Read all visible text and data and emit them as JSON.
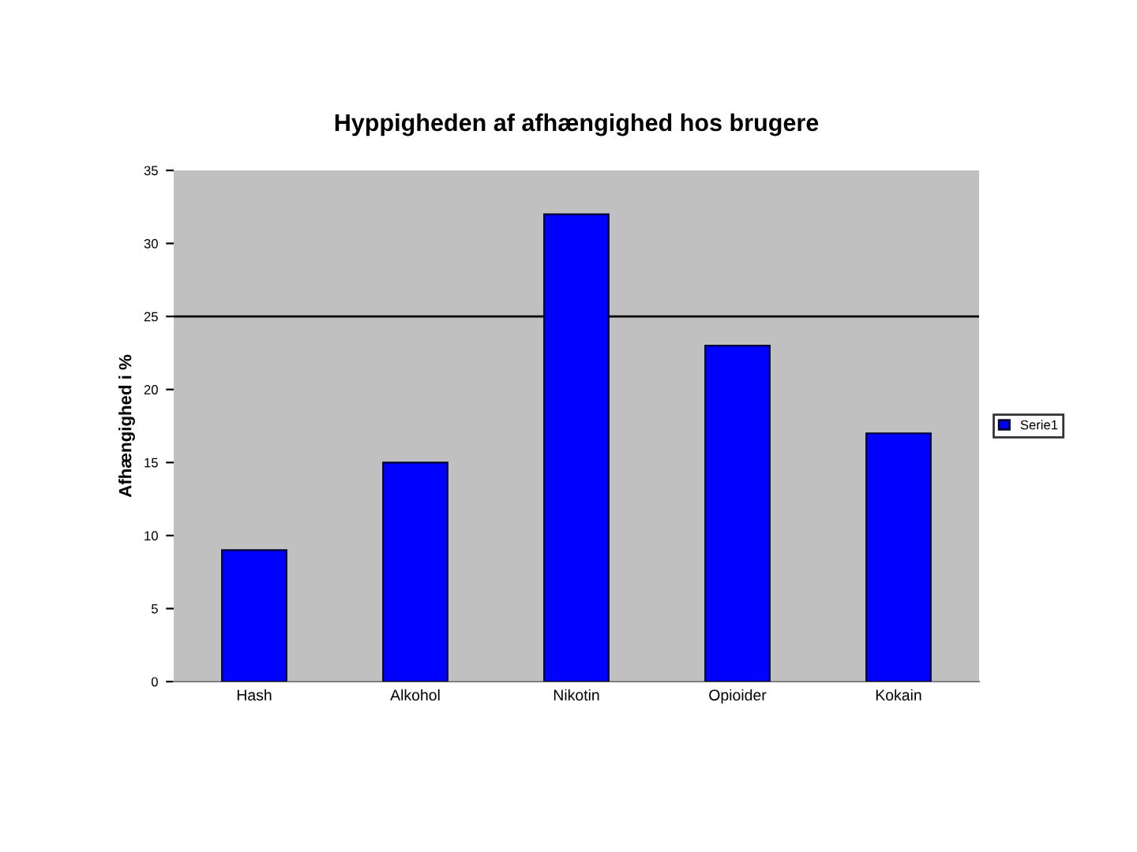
{
  "chart_data": {
    "type": "bar",
    "title": "Hyppigheden af afhængighed hos brugere",
    "ylabel": "Afhængighed i %",
    "categories": [
      "Hash",
      "Alkohol",
      "Nikotin",
      "Opioider",
      "Kokain"
    ],
    "series": [
      {
        "name": "Serie1",
        "color": "#0000ff",
        "values": [
          9,
          15,
          32,
          23,
          17
        ]
      }
    ],
    "ylim": [
      0,
      35
    ],
    "yticks": [
      0,
      5,
      10,
      15,
      20,
      25,
      30,
      35
    ],
    "ref_lines": [
      {
        "axis": "y",
        "value": 25,
        "label": null,
        "color": "#000000",
        "line_style": "solid"
      }
    ],
    "grid": false,
    "legend": "right"
  }
}
